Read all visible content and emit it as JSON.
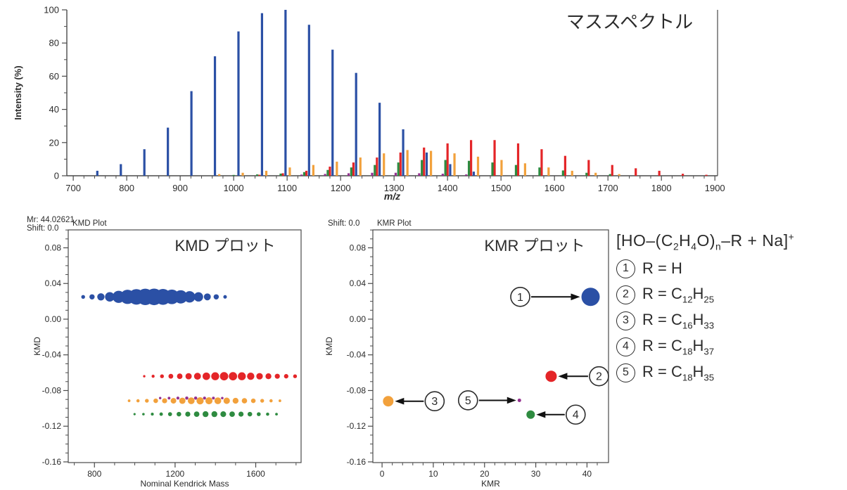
{
  "page": {
    "background": "#ffffff"
  },
  "colors": {
    "blue": "#2B50A5",
    "red": "#E42528",
    "orange": "#F2A13C",
    "green": "#2E8B40",
    "purple": "#93308F",
    "axis": "#4a4a4a",
    "text": "#2b2b2b"
  },
  "legend": {
    "formula": "[HO–(C~2~H~4~O)~n~–R + Na]^+^",
    "items": [
      {
        "num": "1",
        "formula": "R = H"
      },
      {
        "num": "2",
        "formula": "R = C~12~H~25~"
      },
      {
        "num": "3",
        "formula": "R = C~16~H~33~"
      },
      {
        "num": "4",
        "formula": "R = C~18~H~37~"
      },
      {
        "num": "5",
        "formula": "R = C~18~H~35~"
      }
    ]
  },
  "chart_data": [
    {
      "id": "spectrum",
      "type": "bar",
      "title": "マススペクトル",
      "xlabel": "m/z",
      "ylabel": "Intensity (%)",
      "xlim": [
        688,
        1905
      ],
      "ylim": [
        0,
        100
      ],
      "xticks": [
        700,
        800,
        900,
        1000,
        1100,
        1200,
        1300,
        1400,
        1500,
        1600,
        1700,
        1800,
        1900
      ],
      "xminor_step": 20,
      "yticks": [
        0,
        20,
        40,
        60,
        80,
        100
      ],
      "yminor_step": 10,
      "series": [
        {
          "name": "1: R = H",
          "color": "#2B50A5",
          "points": [
            [
              745,
              3
            ],
            [
              789,
              7
            ],
            [
              833,
              16
            ],
            [
              877,
              29
            ],
            [
              921,
              51
            ],
            [
              965,
              72
            ],
            [
              1009,
              87
            ],
            [
              1053,
              98
            ],
            [
              1097,
              100
            ],
            [
              1141,
              91
            ],
            [
              1185,
              76
            ],
            [
              1229,
              62
            ],
            [
              1273,
              44
            ],
            [
              1317,
              28
            ],
            [
              1361,
              14
            ],
            [
              1405,
              7
            ],
            [
              1449,
              2.5
            ]
          ]
        },
        {
          "name": "2: R = C12H25",
          "color": "#E42528",
          "points": [
            [
              1048,
              0.6
            ],
            [
              1092,
              1.5
            ],
            [
              1136,
              3
            ],
            [
              1180,
              5.5
            ],
            [
              1224,
              8
            ],
            [
              1268,
              11
            ],
            [
              1312,
              14
            ],
            [
              1356,
              17
            ],
            [
              1400,
              19.5
            ],
            [
              1444,
              21.5
            ],
            [
              1488,
              21.5
            ],
            [
              1532,
              19.5
            ],
            [
              1576,
              16
            ],
            [
              1620,
              12
            ],
            [
              1664,
              9.5
            ],
            [
              1708,
              6.5
            ],
            [
              1752,
              4.5
            ],
            [
              1796,
              3
            ],
            [
              1840,
              1.2
            ],
            [
              1884,
              0.6
            ]
          ]
        },
        {
          "name": "3: R = C16H33",
          "color": "#F2A13C",
          "points": [
            [
              973,
              1
            ],
            [
              1017,
              1.8
            ],
            [
              1061,
              3
            ],
            [
              1105,
              5
            ],
            [
              1149,
              6.5
            ],
            [
              1193,
              8.5
            ],
            [
              1237,
              11
            ],
            [
              1281,
              13.5
            ],
            [
              1325,
              15.5
            ],
            [
              1369,
              15
            ],
            [
              1413,
              13.5
            ],
            [
              1457,
              11.5
            ],
            [
              1501,
              9.5
            ],
            [
              1545,
              7.5
            ],
            [
              1589,
              5
            ],
            [
              1633,
              3
            ],
            [
              1677,
              1.8
            ],
            [
              1721,
              1
            ]
          ]
        },
        {
          "name": "4: R = C18H37",
          "color": "#2E8B40",
          "points": [
            [
              1000,
              0.5
            ],
            [
              1044,
              0.8
            ],
            [
              1088,
              1.3
            ],
            [
              1132,
              2.2
            ],
            [
              1176,
              3.5
            ],
            [
              1220,
              5
            ],
            [
              1264,
              6.5
            ],
            [
              1308,
              8
            ],
            [
              1352,
              9.5
            ],
            [
              1396,
              9.5
            ],
            [
              1440,
              9
            ],
            [
              1484,
              8
            ],
            [
              1528,
              6.5
            ],
            [
              1572,
              5
            ],
            [
              1616,
              3.2
            ],
            [
              1660,
              1.8
            ],
            [
              1704,
              1
            ]
          ]
        },
        {
          "name": "5: R = C18H35",
          "color": "#93308F",
          "points": [
            [
              1127,
              0.7
            ],
            [
              1171,
              1.1
            ],
            [
              1215,
              1.5
            ],
            [
              1259,
              1.8
            ],
            [
              1303,
              1.8
            ],
            [
              1347,
              1.5
            ],
            [
              1391,
              1.2
            ],
            [
              1435,
              0.8
            ]
          ]
        }
      ]
    },
    {
      "id": "kmd",
      "type": "bubble",
      "plot_label": "KMD Plot",
      "header_lines": [
        "Mr: 44.02621",
        "Shift: 0.0"
      ],
      "title": "KMD プロット",
      "xlabel": "Nominal Kendrick Mass",
      "ylabel": "KMD",
      "xlim": [
        670,
        1825
      ],
      "ylim": [
        -0.1608,
        0.1001
      ],
      "xticks": [
        800,
        1200,
        1600
      ],
      "xminor_step": 100,
      "yticks": [
        0.08,
        0.04,
        0.0,
        -0.04,
        -0.08,
        -0.12,
        -0.16
      ],
      "yminor_step": 0.01,
      "series": [
        {
          "name": "1: R = H",
          "color": "#2B50A5",
          "kmd": 0.025,
          "points": [
            [
              744,
              3
            ],
            [
              788,
              7
            ],
            [
              832,
              16
            ],
            [
              876,
              29
            ],
            [
              920,
              51
            ],
            [
              964,
              72
            ],
            [
              1008,
              87
            ],
            [
              1052,
              98
            ],
            [
              1096,
              100
            ],
            [
              1140,
              91
            ],
            [
              1184,
              76
            ],
            [
              1228,
              62
            ],
            [
              1272,
              44
            ],
            [
              1316,
              28
            ],
            [
              1360,
              14
            ],
            [
              1404,
              7
            ],
            [
              1448,
              2.5
            ]
          ]
        },
        {
          "name": "2: R = C12H25",
          "color": "#E42528",
          "kmd": -0.064,
          "points": [
            [
              1047,
              0.6
            ],
            [
              1091,
              1.5
            ],
            [
              1135,
              3
            ],
            [
              1179,
              5.5
            ],
            [
              1223,
              8
            ],
            [
              1267,
              11
            ],
            [
              1311,
              14
            ],
            [
              1355,
              17
            ],
            [
              1399,
              19.5
            ],
            [
              1443,
              21.5
            ],
            [
              1487,
              21.5
            ],
            [
              1531,
              19.5
            ],
            [
              1575,
              16
            ],
            [
              1619,
              12
            ],
            [
              1663,
              9.5
            ],
            [
              1707,
              6.5
            ],
            [
              1751,
              4.5
            ],
            [
              1795,
              3
            ]
          ]
        },
        {
          "name": "4: R = C18H37",
          "color": "#2E8B40",
          "kmd": -0.1065,
          "points": [
            [
              999,
              0.5
            ],
            [
              1043,
              0.8
            ],
            [
              1087,
              1.3
            ],
            [
              1131,
              2.2
            ],
            [
              1175,
              3.5
            ],
            [
              1219,
              5
            ],
            [
              1263,
              6.5
            ],
            [
              1307,
              8
            ],
            [
              1351,
              9.5
            ],
            [
              1395,
              9.5
            ],
            [
              1439,
              9
            ],
            [
              1483,
              8
            ],
            [
              1527,
              6.5
            ],
            [
              1571,
              5
            ],
            [
              1615,
              3.2
            ],
            [
              1659,
              1.8
            ],
            [
              1703,
              1
            ]
          ]
        },
        {
          "name": "3: R = C16H33",
          "color": "#F2A13C",
          "kmd": -0.0915,
          "points": [
            [
              972,
              1
            ],
            [
              1016,
              1.8
            ],
            [
              1060,
              3
            ],
            [
              1104,
              5
            ],
            [
              1148,
              6.5
            ],
            [
              1192,
              8.5
            ],
            [
              1236,
              11
            ],
            [
              1280,
              13.5
            ],
            [
              1324,
              15.5
            ],
            [
              1368,
              15
            ],
            [
              1412,
              13.5
            ],
            [
              1456,
              11.5
            ],
            [
              1500,
              9.5
            ],
            [
              1544,
              7.5
            ],
            [
              1588,
              5
            ],
            [
              1632,
              3
            ],
            [
              1676,
              1.8
            ],
            [
              1720,
              1
            ]
          ]
        },
        {
          "name": "5: R = C18H35",
          "color": "#93308F",
          "kmd": -0.0885,
          "points": [
            [
              1126,
              0.7
            ],
            [
              1170,
              1.1
            ],
            [
              1214,
              1.5
            ],
            [
              1258,
              1.8
            ],
            [
              1302,
              1.8
            ],
            [
              1346,
              1.5
            ],
            [
              1390,
              1.2
            ],
            [
              1434,
              0.8
            ]
          ]
        }
      ]
    },
    {
      "id": "kmr",
      "type": "scatter",
      "plot_label": "KMR Plot",
      "header_lines": [
        "Shift: 0.0"
      ],
      "title": "KMR プロット",
      "xlabel": "KMR",
      "ylabel": "KMD",
      "xlim": [
        -1.8,
        44.2
      ],
      "ylim": [
        -0.1608,
        0.1001
      ],
      "xticks": [
        0,
        10,
        20,
        30,
        40
      ],
      "xminor_step": 2,
      "yticks": [
        0.08,
        0.04,
        0.0,
        -0.04,
        -0.08,
        -0.12,
        -0.16
      ],
      "yminor_step": 0.01,
      "points": [
        {
          "num": "1",
          "name": "R = H",
          "color": "#2B50A5",
          "x": 40.7,
          "kmd": 0.025,
          "r": 13,
          "label_dx": -100
        },
        {
          "num": "2",
          "name": "R = C12H25",
          "color": "#E42528",
          "x": 33,
          "kmd": -0.064,
          "r": 8,
          "label_dx": 68
        },
        {
          "num": "3",
          "name": "R = C16H33",
          "color": "#F2A13C",
          "x": 1.2,
          "kmd": -0.092,
          "r": 7.5,
          "label_dx": 66
        },
        {
          "num": "4",
          "name": "R = C18H37",
          "color": "#2E8B40",
          "x": 29,
          "kmd": -0.107,
          "r": 6,
          "label_dx": 64
        },
        {
          "num": "5",
          "name": "R = C18H35",
          "color": "#93308F",
          "x": 26.8,
          "kmd": -0.091,
          "r": 2.5,
          "label_dx": -73
        }
      ]
    }
  ]
}
